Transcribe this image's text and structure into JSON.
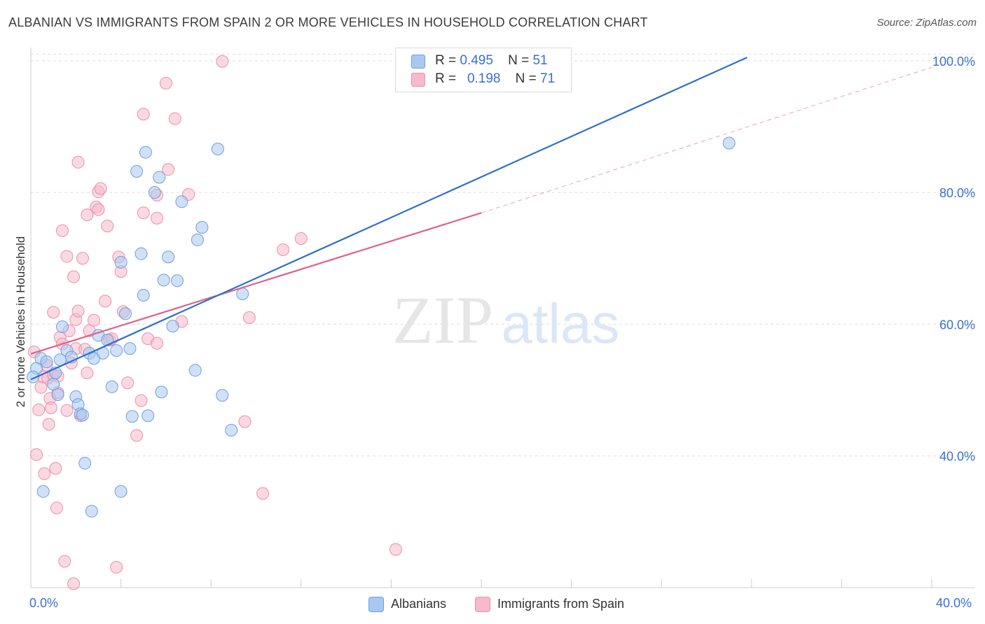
{
  "title": "ALBANIAN VS IMMIGRANTS FROM SPAIN 2 OR MORE VEHICLES IN HOUSEHOLD CORRELATION CHART",
  "source": "Source: ZipAtlas.com",
  "watermark": {
    "zip": "ZIP",
    "atlas": "atlas"
  },
  "colors": {
    "albanians_fill": "#a9c8f0",
    "albanians_stroke": "#6e9fe0",
    "albanians_line": "#2f6fcc",
    "spain_fill": "#f7b9cb",
    "spain_stroke": "#ec8fab",
    "spain_line": "#e0608a",
    "grid": "#dddddd",
    "axis_text": "#3a6fd0"
  },
  "legend_top": {
    "rows": [
      {
        "r_label": "R =",
        "r_value": "0.495",
        "n_label": "N =",
        "n_value": "51"
      },
      {
        "r_label": "R =",
        "r_value": "0.198",
        "n_label": "N =",
        "n_value": "71"
      }
    ]
  },
  "legend_bottom": {
    "albanians": "Albanians",
    "spain": "Immigrants from Spain"
  },
  "x_tick_labels": {
    "left": "0.0%",
    "right": "40.0%"
  },
  "chart_data": {
    "type": "scatter",
    "title": "ALBANIAN VS IMMIGRANTS FROM SPAIN 2 OR MORE VEHICLES IN HOUSEHOLD CORRELATION CHART",
    "xlabel": "",
    "ylabel": "2 or more Vehicles in Household",
    "xlim": [
      0,
      40
    ],
    "ylim": [
      20,
      102
    ],
    "y_ticks": [
      {
        "value": 40,
        "label": "40.0%"
      },
      {
        "value": 60,
        "label": "60.0%"
      },
      {
        "value": 80,
        "label": "80.0%"
      },
      {
        "value": 100,
        "label": "100.0%"
      }
    ],
    "x_ticks": [
      0,
      4,
      8,
      12,
      16,
      20,
      24,
      28,
      32,
      36,
      40
    ],
    "grid": true,
    "legend_position": "top-center",
    "series": [
      {
        "name": "Albanians",
        "r": 0.495,
        "n": 51,
        "trend": {
          "x0": 0,
          "y0": 51.6,
          "x1": 31.8,
          "y1": 100.5
        },
        "points": [
          [
            0.25,
            53.3
          ],
          [
            0.45,
            54.8
          ],
          [
            0.55,
            34.6
          ],
          [
            0.7,
            54.3
          ],
          [
            1.0,
            50.9
          ],
          [
            1.1,
            52.6
          ],
          [
            1.2,
            49.3
          ],
          [
            1.4,
            59.6
          ],
          [
            1.6,
            56.0
          ],
          [
            1.8,
            55.0
          ],
          [
            2.0,
            49.0
          ],
          [
            2.1,
            47.8
          ],
          [
            2.2,
            46.4
          ],
          [
            2.3,
            46.2
          ],
          [
            2.4,
            38.9
          ],
          [
            2.6,
            55.6
          ],
          [
            2.7,
            31.6
          ],
          [
            2.8,
            54.8
          ],
          [
            3.0,
            58.3
          ],
          [
            3.2,
            55.6
          ],
          [
            3.4,
            57.6
          ],
          [
            3.6,
            50.5
          ],
          [
            3.8,
            56.0
          ],
          [
            4.0,
            34.6
          ],
          [
            4.0,
            69.4
          ],
          [
            4.2,
            61.6
          ],
          [
            4.4,
            56.3
          ],
          [
            4.5,
            46.0
          ],
          [
            4.7,
            83.2
          ],
          [
            4.9,
            70.7
          ],
          [
            5.0,
            64.4
          ],
          [
            5.1,
            86.1
          ],
          [
            5.2,
            46.1
          ],
          [
            5.5,
            80.0
          ],
          [
            5.7,
            82.3
          ],
          [
            5.8,
            49.7
          ],
          [
            5.9,
            66.7
          ],
          [
            6.1,
            70.2
          ],
          [
            6.3,
            59.7
          ],
          [
            6.5,
            66.6
          ],
          [
            6.7,
            78.6
          ],
          [
            7.3,
            53.0
          ],
          [
            7.4,
            72.8
          ],
          [
            7.6,
            74.7
          ],
          [
            8.3,
            86.6
          ],
          [
            8.5,
            49.2
          ],
          [
            8.9,
            43.9
          ],
          [
            9.4,
            64.6
          ],
          [
            0.1,
            52.0
          ],
          [
            31.0,
            87.5
          ],
          [
            1.3,
            54.6
          ]
        ]
      },
      {
        "name": "Immigrants from Spain",
        "r": 0.198,
        "n": 71,
        "trend": {
          "x0": 0,
          "y0": 55.5,
          "x1": 20.0,
          "y1": 76.9
        },
        "extension": {
          "x0": 20.0,
          "y0": 76.9,
          "x1": 40.0,
          "y1": 99.0
        },
        "points": [
          [
            0.15,
            55.8
          ],
          [
            0.25,
            40.2
          ],
          [
            0.35,
            47.0
          ],
          [
            0.45,
            50.4
          ],
          [
            0.55,
            52.0
          ],
          [
            0.6,
            37.3
          ],
          [
            0.75,
            51.8
          ],
          [
            0.8,
            44.8
          ],
          [
            0.85,
            48.7
          ],
          [
            0.9,
            47.3
          ],
          [
            1.0,
            61.8
          ],
          [
            1.0,
            52.3
          ],
          [
            1.1,
            38.1
          ],
          [
            1.15,
            32.1
          ],
          [
            1.2,
            49.6
          ],
          [
            1.3,
            58.0
          ],
          [
            1.4,
            74.2
          ],
          [
            1.5,
            24.0
          ],
          [
            1.6,
            46.9
          ],
          [
            1.6,
            70.3
          ],
          [
            1.7,
            59.0
          ],
          [
            1.8,
            54.1
          ],
          [
            1.9,
            20.6
          ],
          [
            1.9,
            67.2
          ],
          [
            2.0,
            60.7
          ],
          [
            2.1,
            62.0
          ],
          [
            2.1,
            84.6
          ],
          [
            2.2,
            46.1
          ],
          [
            2.3,
            70.0
          ],
          [
            2.5,
            52.6
          ],
          [
            2.5,
            76.6
          ],
          [
            2.6,
            59.0
          ],
          [
            2.8,
            60.6
          ],
          [
            2.9,
            77.8
          ],
          [
            3.0,
            77.4
          ],
          [
            3.0,
            80.1
          ],
          [
            3.1,
            80.6
          ],
          [
            3.3,
            63.5
          ],
          [
            3.4,
            74.9
          ],
          [
            3.5,
            57.6
          ],
          [
            3.6,
            57.8
          ],
          [
            3.8,
            23.1
          ],
          [
            3.9,
            70.2
          ],
          [
            4.0,
            68.0
          ],
          [
            4.1,
            61.9
          ],
          [
            4.3,
            51.1
          ],
          [
            4.7,
            43.1
          ],
          [
            4.9,
            48.4
          ],
          [
            5.0,
            76.9
          ],
          [
            5.0,
            91.9
          ],
          [
            5.2,
            57.8
          ],
          [
            5.6,
            57.1
          ],
          [
            5.6,
            76.1
          ],
          [
            5.6,
            79.6
          ],
          [
            6.0,
            96.6
          ],
          [
            6.1,
            83.5
          ],
          [
            6.4,
            91.2
          ],
          [
            6.7,
            60.4
          ],
          [
            7.0,
            79.7
          ],
          [
            8.5,
            99.9
          ],
          [
            9.5,
            45.2
          ],
          [
            9.7,
            61.0
          ],
          [
            10.3,
            34.3
          ],
          [
            11.2,
            71.3
          ],
          [
            12.0,
            73.0
          ],
          [
            16.2,
            25.8
          ],
          [
            1.4,
            57.0
          ],
          [
            2.0,
            56.3
          ],
          [
            0.7,
            53.8
          ],
          [
            1.2,
            52.1
          ],
          [
            2.4,
            56.2
          ]
        ]
      }
    ]
  }
}
